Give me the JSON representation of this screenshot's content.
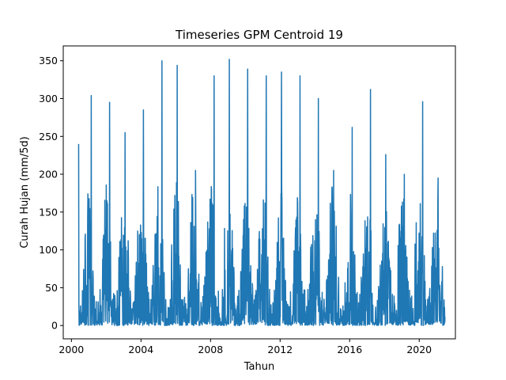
{
  "chart_data": {
    "type": "line",
    "title": "Timeseries GPM Centroid 19",
    "xlabel": "Tahun",
    "ylabel": "Curah Hujan (mm/5d)",
    "xlim": [
      1999.53,
      2022.08
    ],
    "ylim": [
      -17.6,
      369.6
    ],
    "x_ticks": [
      2000,
      2004,
      2008,
      2012,
      2016,
      2020
    ],
    "x_tick_labels": [
      "2000",
      "2004",
      "2008",
      "2012",
      "2016",
      "2020"
    ],
    "y_ticks": [
      0,
      50,
      100,
      150,
      200,
      250,
      300,
      350
    ],
    "y_tick_labels": [
      "0",
      "50",
      "100",
      "150",
      "200",
      "250",
      "300",
      "350"
    ],
    "grid": false,
    "legend": "none",
    "color": "#1f77b4",
    "series": [
      {
        "sampling": "5-day totals",
        "x_start": "2000-06-01",
        "x_end": "2021-06-30",
        "annual_peaks": [
          {
            "year": 2000,
            "peak": 240
          },
          {
            "year": 2001,
            "peak": 304
          },
          {
            "year": 2002,
            "peak": 295
          },
          {
            "year": 2003,
            "peak": 255
          },
          {
            "year": 2004,
            "peak": 285
          },
          {
            "year": 2005,
            "peak": 350
          },
          {
            "year": 2006,
            "peak": 344
          },
          {
            "year": 2007,
            "peak": 205
          },
          {
            "year": 2008,
            "peak": 330
          },
          {
            "year": 2009,
            "peak": 352
          },
          {
            "year": 2010,
            "peak": 339
          },
          {
            "year": 2011,
            "peak": 330
          },
          {
            "year": 2012,
            "peak": 335
          },
          {
            "year": 2013,
            "peak": 330
          },
          {
            "year": 2014,
            "peak": 300
          },
          {
            "year": 2015,
            "peak": 205
          },
          {
            "year": 2016,
            "peak": 262
          },
          {
            "year": 2017,
            "peak": 312
          },
          {
            "year": 2018,
            "peak": 226
          },
          {
            "year": 2019,
            "peak": 200
          },
          {
            "year": 2020,
            "peak": 296
          },
          {
            "year": 2021,
            "peak": 195
          }
        ]
      }
    ]
  }
}
